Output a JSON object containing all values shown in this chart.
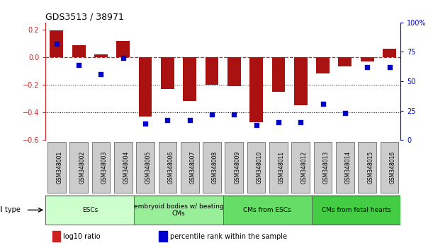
{
  "title": "GDS3513 / 38971",
  "samples": [
    "GSM348001",
    "GSM348002",
    "GSM348003",
    "GSM348004",
    "GSM348005",
    "GSM348006",
    "GSM348007",
    "GSM348008",
    "GSM348009",
    "GSM348010",
    "GSM348011",
    "GSM348012",
    "GSM348013",
    "GSM348014",
    "GSM348015",
    "GSM348016"
  ],
  "log10_ratio": [
    0.195,
    0.085,
    0.02,
    0.115,
    -0.43,
    -0.23,
    -0.32,
    -0.2,
    -0.21,
    -0.47,
    -0.25,
    -0.35,
    -0.12,
    -0.07,
    -0.03,
    0.06
  ],
  "percentile_rank": [
    82,
    64,
    56,
    70,
    14,
    17,
    17,
    22,
    22,
    13,
    15,
    15,
    31,
    23,
    62,
    62
  ],
  "ylim_left": [
    -0.6,
    0.25
  ],
  "ylim_right": [
    0,
    100
  ],
  "bar_color": "#aa1111",
  "scatter_color": "#0000cc",
  "zero_line_color": "#cc2222",
  "grid_line_color": "#000000",
  "cell_type_groups": [
    {
      "label": "ESCs",
      "start": 0,
      "end": 3,
      "color": "#ccffcc"
    },
    {
      "label": "embryoid bodies w/ beating\nCMs",
      "start": 4,
      "end": 7,
      "color": "#99ee99"
    },
    {
      "label": "CMs from ESCs",
      "start": 8,
      "end": 11,
      "color": "#66dd66"
    },
    {
      "label": "CMs from fetal hearts",
      "start": 12,
      "end": 15,
      "color": "#44cc44"
    }
  ],
  "left_yticks": [
    -0.6,
    -0.4,
    -0.2,
    0.0,
    0.2
  ],
  "right_yticks": [
    0,
    25,
    50,
    75,
    100
  ],
  "right_yticklabels": [
    "0",
    "25",
    "50",
    "75",
    "100%"
  ],
  "tick_label_color_left": "#cc2222",
  "tick_label_color_right": "#0000cc",
  "bar_width": 0.6,
  "cell_type_label": "cell type",
  "sample_box_color": "#cccccc",
  "legend_items": [
    {
      "color": "#cc2222",
      "label": "log10 ratio"
    },
    {
      "color": "#0000cc",
      "label": "percentile rank within the sample"
    }
  ]
}
